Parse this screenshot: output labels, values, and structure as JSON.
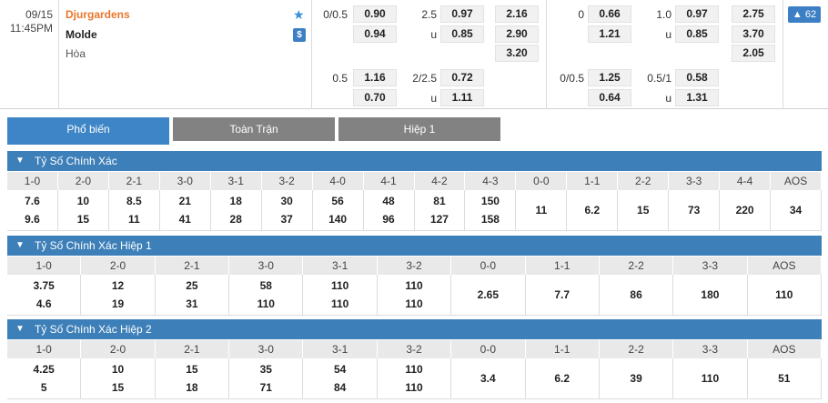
{
  "match": {
    "date": "09/15",
    "time": "11:45PM",
    "home": "Djurgardens",
    "away": "Molde",
    "draw": "Hòa",
    "more_count": "62"
  },
  "odds": {
    "ft_ah_1": "0/0.5",
    "ft_ah_home": "0.90",
    "ft_ah_away": "0.94",
    "ft_ou_1": "2.5",
    "ft_ou_over": "0.97",
    "ft_ou_u": "u",
    "ft_ou_under": "0.85",
    "ft_1x2_home": "2.16",
    "ft_1x2_away": "2.90",
    "ft_1x2_draw": "3.20",
    "ft_ah_2": "0.5",
    "ft_ah2_home": "1.16",
    "ft_ah2_away": "0.70",
    "ft_ou_2": "2/2.5",
    "ft_ou2_over": "0.72",
    "ft_ou2_u": "u",
    "ft_ou2_under": "1.11",
    "h1_ah_1": "0",
    "h1_ah_home": "0.66",
    "h1_ah_away": "1.21",
    "h1_ou_1": "1.0",
    "h1_ou_over": "0.97",
    "h1_ou_u": "u",
    "h1_ou_under": "0.85",
    "h1_1x2_home": "2.75",
    "h1_1x2_away": "3.70",
    "h1_1x2_draw": "2.05",
    "h1_ah_2": "0/0.5",
    "h1_ah2_home": "1.25",
    "h1_ah2_away": "0.64",
    "h1_ou_2": "0.5/1",
    "h1_ou2_over": "0.58",
    "h1_ou2_u": "u",
    "h1_ou2_under": "1.31"
  },
  "tabs": [
    "Phổ biến",
    "Toàn Trận",
    "Hiệp 1"
  ],
  "sections": [
    {
      "title": "Tỷ Số Chính Xác",
      "cols": [
        "1-0",
        "2-0",
        "2-1",
        "3-0",
        "3-1",
        "3-2",
        "4-0",
        "4-1",
        "4-2",
        "4-3",
        "0-0",
        "1-1",
        "2-2",
        "3-3",
        "4-4",
        "AOS"
      ],
      "values": [
        [
          "7.6",
          "9.6"
        ],
        [
          "10",
          "15"
        ],
        [
          "8.5",
          "11"
        ],
        [
          "21",
          "41"
        ],
        [
          "18",
          "28"
        ],
        [
          "30",
          "37"
        ],
        [
          "56",
          "140"
        ],
        [
          "48",
          "96"
        ],
        [
          "81",
          "127"
        ],
        [
          "150",
          "158"
        ],
        [
          "11"
        ],
        [
          "6.2"
        ],
        [
          "15"
        ],
        [
          "73"
        ],
        [
          "220"
        ],
        [
          "34"
        ]
      ]
    },
    {
      "title": "Tỷ Số Chính Xác Hiệp 1",
      "cols": [
        "1-0",
        "2-0",
        "2-1",
        "3-0",
        "3-1",
        "3-2",
        "0-0",
        "1-1",
        "2-2",
        "3-3",
        "AOS"
      ],
      "values": [
        [
          "3.75",
          "4.6"
        ],
        [
          "12",
          "19"
        ],
        [
          "25",
          "31"
        ],
        [
          "58",
          "110"
        ],
        [
          "110",
          "110"
        ],
        [
          "110",
          "110"
        ],
        [
          "2.65"
        ],
        [
          "7.7"
        ],
        [
          "86"
        ],
        [
          "180"
        ],
        [
          "110"
        ]
      ]
    },
    {
      "title": "Tỷ Số Chính Xác Hiệp 2",
      "cols": [
        "1-0",
        "2-0",
        "2-1",
        "3-0",
        "3-1",
        "3-2",
        "0-0",
        "1-1",
        "2-2",
        "3-3",
        "AOS"
      ],
      "values": [
        [
          "4.25",
          "5"
        ],
        [
          "10",
          "15"
        ],
        [
          "15",
          "18"
        ],
        [
          "35",
          "71"
        ],
        [
          "54",
          "84"
        ],
        [
          "110",
          "110"
        ],
        [
          "3.4"
        ],
        [
          "6.2"
        ],
        [
          "39"
        ],
        [
          "110"
        ],
        [
          "51"
        ]
      ]
    }
  ]
}
